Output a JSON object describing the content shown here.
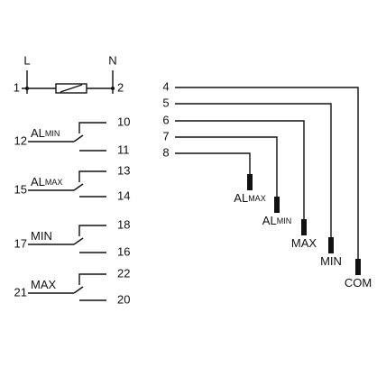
{
  "power": {
    "L": "L",
    "N": "N",
    "t1": "1",
    "t2": "2"
  },
  "contacts": [
    {
      "common": "12",
      "label": "AL",
      "sub": "MIN",
      "no": "10",
      "nc": "11"
    },
    {
      "common": "15",
      "label": "AL",
      "sub": "MAX",
      "no": "13",
      "nc": "14"
    },
    {
      "common": "17",
      "label": "MIN",
      "no": "18",
      "nc": "16"
    },
    {
      "common": "21",
      "label": "MAX",
      "no": "22",
      "nc": "20"
    }
  ],
  "outputs": [
    {
      "terminal": "4",
      "label": "COM"
    },
    {
      "terminal": "5",
      "label": "MIN"
    },
    {
      "terminal": "6",
      "label": "MAX"
    },
    {
      "terminal": "7",
      "label": "AL",
      "sub": "MIN"
    },
    {
      "terminal": "8",
      "label": "AL",
      "sub": "MAX"
    }
  ]
}
